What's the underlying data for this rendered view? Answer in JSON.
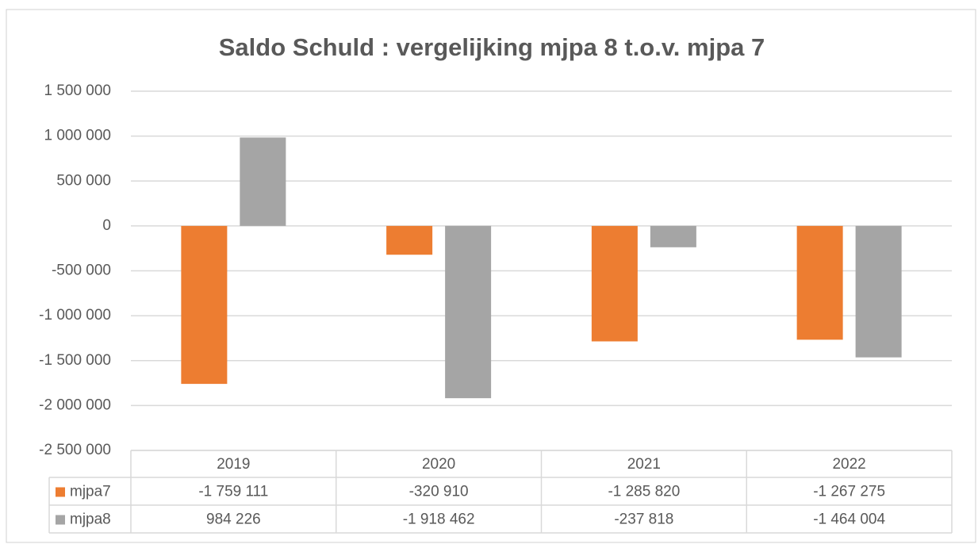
{
  "chart_data": {
    "type": "bar",
    "title": "Saldo Schuld : vergelijking mjpa 8 t.o.v. mjpa 7",
    "categories": [
      "2019",
      "2020",
      "2021",
      "2022"
    ],
    "series": [
      {
        "name": "mjpa7",
        "color": "#ed7d31",
        "values": [
          -1759111,
          -320910,
          -1285820,
          -1267275
        ],
        "value_labels": [
          "-1 759 111",
          "-320 910",
          "-1 285 820",
          "-1 267 275"
        ]
      },
      {
        "name": "mjpa8",
        "color": "#a5a5a5",
        "values": [
          984226,
          -1918462,
          -237818,
          -1464004
        ],
        "value_labels": [
          "984 226",
          "-1 918 462",
          "-237 818",
          "-1 464 004"
        ]
      }
    ],
    "ylim": [
      -2500000,
      1500000
    ],
    "yticks": [
      {
        "value": 1500000,
        "label": "1 500 000"
      },
      {
        "value": 1000000,
        "label": "1 000 000"
      },
      {
        "value": 500000,
        "label": "500 000"
      },
      0,
      {
        "value": -500000,
        "label": "-500 000"
      },
      {
        "value": -1000000,
        "label": "-1 000 000"
      },
      {
        "value": -1500000,
        "label": "-1 500 000"
      },
      {
        "value": -2000000,
        "label": "-2 000 000"
      },
      {
        "value": -2500000,
        "label": "-2 500 000"
      }
    ],
    "grid": true
  }
}
